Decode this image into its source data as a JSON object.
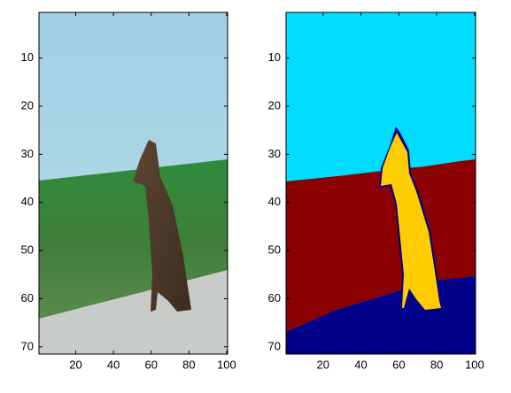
{
  "chart_data": [
    {
      "type": "image",
      "xlim": [
        0.5,
        100.5
      ],
      "ylim": [
        0.5,
        71.5
      ],
      "xticks": [
        20,
        40,
        60,
        80,
        100
      ],
      "yticks": [
        10,
        20,
        30,
        40,
        50,
        60,
        70
      ]
    },
    {
      "type": "image",
      "xlim": [
        0.5,
        100.5
      ],
      "ylim": [
        0.5,
        71.5
      ],
      "xticks": [
        20,
        40,
        60,
        80,
        100
      ],
      "yticks": [
        10,
        20,
        30,
        40,
        50,
        60,
        70
      ]
    }
  ]
}
